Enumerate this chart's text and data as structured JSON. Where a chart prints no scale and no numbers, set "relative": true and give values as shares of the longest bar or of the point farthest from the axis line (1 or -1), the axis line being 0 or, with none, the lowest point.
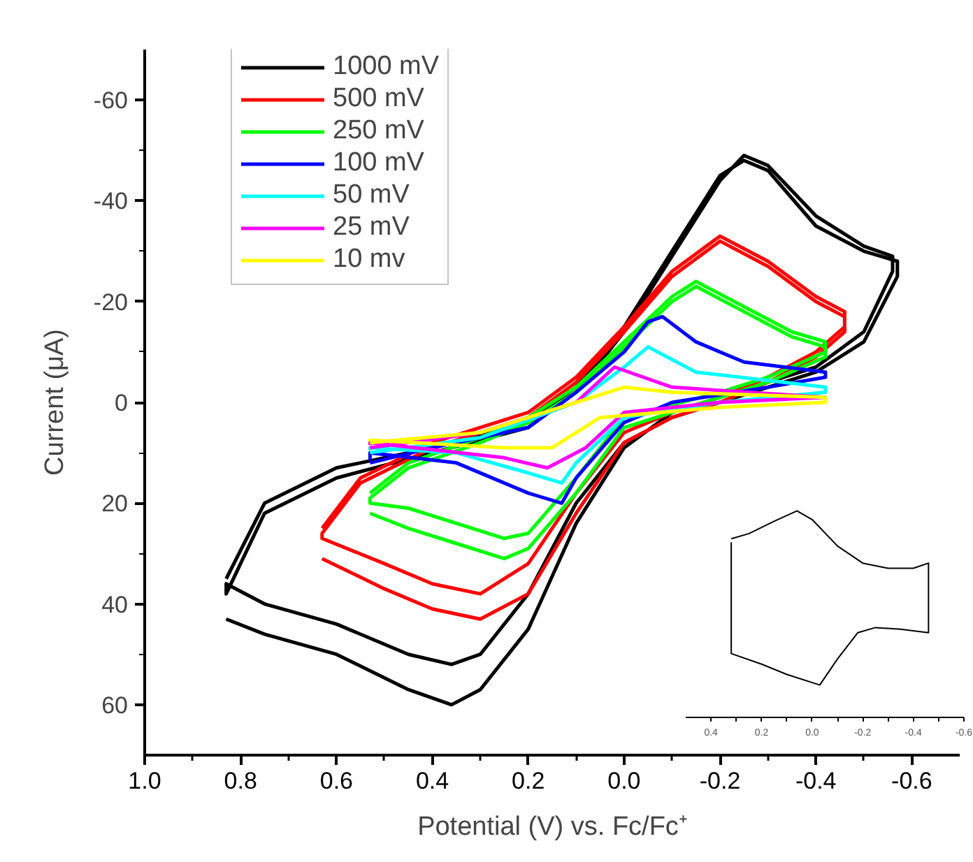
{
  "chart_data": [
    {
      "type": "line",
      "xlabel": "Potential (V) vs. Fc/Fc⁺",
      "ylabel": "Current (μA)",
      "xlim": [
        1.0,
        -0.7
      ],
      "ylim": [
        70,
        -70
      ],
      "xticks": [
        {
          "value": 1,
          "label": "1.0"
        },
        {
          "value": 0.9,
          "label": null
        },
        0.8,
        {
          "value": 0.7,
          "label": null
        },
        0.6,
        {
          "value": 0.5,
          "label": null
        },
        0.4,
        {
          "value": 0.3,
          "label": null
        },
        0.2,
        {
          "value": 0.1,
          "label": null
        },
        {
          "value": 0,
          "label": "0.0"
        },
        {
          "value": -0.1,
          "label": null
        },
        -0.2,
        {
          "value": -0.3,
          "label": null
        },
        -0.4,
        {
          "value": -0.5,
          "label": null
        },
        -0.6
      ],
      "yticks": [
        -60,
        {
          "value": -50,
          "label": null
        },
        -40,
        {
          "value": -30,
          "label": null
        },
        -20,
        {
          "value": -10,
          "label": null
        },
        0,
        {
          "value": 10,
          "label": null
        },
        20,
        {
          "value": 30,
          "label": null
        },
        40,
        {
          "value": 50,
          "label": null
        },
        60
      ],
      "grid": false,
      "legend": "top left",
      "marker": "none",
      "line_style": "solid",
      "series": [
        {
          "name": "1000 mV",
          "color": "#000000",
          "x": [
            0.83,
            0.75,
            0.6,
            0.4,
            0.2,
            0.1,
            0.0,
            -0.1,
            -0.2,
            -0.25,
            -0.3,
            -0.4,
            -0.5,
            -0.57,
            -0.57,
            -0.5,
            -0.4,
            -0.3,
            -0.2,
            -0.1,
            0.0,
            0.1,
            0.2,
            0.3,
            0.36,
            0.45,
            0.6,
            0.75,
            0.83,
            0.83,
            0.75,
            0.6,
            0.4,
            0.2,
            0.1,
            0.0,
            -0.1,
            -0.2,
            -0.25,
            -0.3,
            -0.4,
            -0.5,
            -0.56,
            -0.56,
            -0.5,
            -0.4,
            -0.3,
            -0.2,
            -0.1,
            0.0,
            0.1,
            0.2,
            0.3,
            0.36,
            0.45,
            0.6,
            0.75,
            0.83
          ],
          "values": [
            35,
            20,
            13,
            9,
            4,
            -3,
            -15,
            -30,
            -45,
            -48,
            -46,
            -35,
            -30,
            -28,
            -25,
            -12,
            -6,
            -3,
            0,
            3,
            8,
            20,
            38,
            50,
            52,
            50,
            44,
            40,
            36,
            38,
            22,
            15,
            10,
            5,
            -2,
            -14,
            -29,
            -44,
            -49,
            -47,
            -37,
            -31,
            -29,
            -26,
            -14,
            -7,
            -4,
            -1,
            2,
            9,
            24,
            45,
            57,
            60,
            57,
            50,
            46,
            43
          ]
        },
        {
          "name": "500 mV",
          "color": "#ff0000",
          "x": [
            0.63,
            0.55,
            0.4,
            0.2,
            0.1,
            0.0,
            -0.1,
            -0.2,
            -0.3,
            -0.4,
            -0.46,
            -0.46,
            -0.4,
            -0.3,
            -0.2,
            -0.1,
            0.0,
            0.1,
            0.2,
            0.3,
            0.4,
            0.5,
            0.63,
            0.63,
            0.55,
            0.4,
            0.2,
            0.1,
            0.0,
            -0.1,
            -0.2,
            -0.3,
            -0.4,
            -0.46,
            -0.46,
            -0.4,
            -0.3,
            -0.2,
            -0.1,
            0.0,
            0.1,
            0.2,
            0.3,
            0.4,
            0.5,
            0.63
          ],
          "values": [
            25,
            15,
            8,
            2,
            -5,
            -15,
            -26,
            -33,
            -28,
            -21,
            -18,
            -15,
            -10,
            -5,
            -1,
            2,
            6,
            18,
            32,
            38,
            36,
            32,
            27,
            26,
            16,
            9,
            3,
            -4,
            -14,
            -25,
            -32,
            -27,
            -20,
            -17,
            -14,
            -9,
            -4,
            0,
            3,
            8,
            22,
            38,
            43,
            41,
            37,
            31
          ]
        },
        {
          "name": "250 mV",
          "color": "#00ff00",
          "x": [
            0.53,
            0.45,
            0.3,
            0.2,
            0.1,
            0.0,
            -0.1,
            -0.15,
            -0.25,
            -0.35,
            -0.42,
            -0.42,
            -0.3,
            -0.2,
            0.0,
            0.1,
            0.2,
            0.25,
            0.35,
            0.45,
            0.53,
            0.53,
            0.45,
            0.3,
            0.2,
            0.1,
            0.0,
            -0.1,
            -0.15,
            -0.25,
            -0.35,
            -0.42,
            -0.42,
            -0.3,
            -0.2,
            0.0,
            0.1,
            0.2,
            0.25,
            0.35,
            0.45,
            0.53
          ],
          "values": [
            18,
            12,
            7,
            3,
            -3,
            -12,
            -21,
            -24,
            -19,
            -14,
            -12,
            -10,
            -5,
            -2,
            3,
            15,
            26,
            27,
            24,
            21,
            20,
            19,
            13,
            8,
            4,
            -2,
            -11,
            -20,
            -23,
            -18,
            -13,
            -11,
            -9,
            -4,
            -1,
            5,
            18,
            29,
            31,
            28,
            25,
            22
          ]
        },
        {
          "name": "100 mV",
          "color": "#0000ff",
          "x": [
            0.53,
            0.4,
            0.2,
            0.1,
            0.0,
            -0.05,
            -0.08,
            -0.15,
            -0.25,
            -0.42,
            -0.42,
            -0.3,
            -0.1,
            0.0,
            0.1,
            0.13,
            0.2,
            0.35,
            0.53,
            0.53
          ],
          "values": [
            12,
            9,
            5,
            -2,
            -10,
            -16,
            -17,
            -12,
            -8,
            -6,
            -5,
            -3,
            0,
            4,
            15,
            20,
            18,
            12,
            10,
            11.5
          ]
        },
        {
          "name": "50 mV",
          "color": "#00ffff",
          "x": [
            0.53,
            0.3,
            0.1,
            0.0,
            -0.05,
            -0.15,
            -0.42,
            -0.42,
            -0.2,
            0.0,
            0.1,
            0.13,
            0.2,
            0.35,
            0.53,
            0.53
          ],
          "values": [
            10,
            7,
            0,
            -7,
            -11,
            -6,
            -3,
            -2,
            0,
            3,
            12,
            16,
            14,
            10,
            9,
            9.5
          ]
        },
        {
          "name": "25 mV",
          "color": "#ff00ff",
          "x": [
            0.53,
            0.3,
            0.1,
            0.02,
            -0.1,
            -0.42,
            -0.42,
            -0.2,
            0.0,
            0.08,
            0.16,
            0.25,
            0.53,
            0.53
          ],
          "values": [
            9,
            6,
            0,
            -7,
            -3,
            -1,
            -1,
            0,
            2,
            9,
            13,
            11,
            8,
            8.5
          ]
        },
        {
          "name": "10 mv",
          "color": "#ffff00",
          "x": [
            0.53,
            0.3,
            0.1,
            0.0,
            -0.1,
            -0.42,
            -0.42,
            -0.2,
            0.05,
            0.15,
            0.25,
            0.53,
            0.53
          ],
          "values": [
            8,
            6,
            0,
            -3,
            -2,
            -1,
            0,
            1,
            3,
            9,
            9,
            7.5,
            7.8
          ]
        }
      ]
    },
    {
      "type": "line",
      "relative": true,
      "xlim": [
        0.5,
        -0.6
      ],
      "xticks": [
        0.4,
        {
          "value": 0.3,
          "label": null
        },
        0.2,
        {
          "value": 0.1,
          "label": null
        },
        {
          "value": 0,
          "label": "0.0"
        },
        {
          "value": -0.1,
          "label": null
        },
        -0.2,
        {
          "value": -0.3,
          "label": null
        },
        -0.4,
        {
          "value": -0.5,
          "label": null
        },
        -0.6
      ],
      "tick_labels": "x",
      "grid": false,
      "legend": false,
      "marker": "none",
      "line_style": "solid",
      "series": [
        {
          "color": "#000000",
          "x": [
            0.32,
            0.25,
            0.15,
            0.06,
            0.0,
            -0.1,
            -0.2,
            -0.3,
            -0.4,
            -0.46,
            -0.46,
            -0.35,
            -0.25,
            -0.18,
            -0.1,
            -0.03,
            0.1,
            0.2,
            0.32,
            0.32
          ],
          "values": [
            0.865,
            0.89,
            0.95,
            1,
            0.958,
            0.83,
            0.747,
            0.722,
            0.722,
            0.747,
            0.41,
            0.427,
            0.435,
            0.41,
            0.283,
            0.157,
            0.208,
            0.258,
            0.309,
            0.848
          ]
        }
      ]
    }
  ]
}
